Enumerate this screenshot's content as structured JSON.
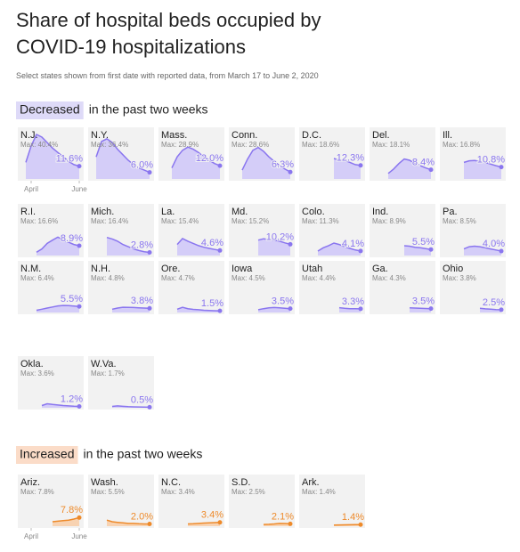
{
  "chart_data": {
    "type": "area",
    "title": "Share of hospital beds occupied by COVID-19 hospitalizations",
    "subtitle": "Select states shown from first date with reported data, from March 17 to June 2, 2020",
    "xlim": [
      0,
      11
    ],
    "xticks": [
      {
        "value": 2,
        "label": "April"
      },
      {
        "value": 11,
        "label": "June"
      }
    ],
    "ylim": [
      0,
      42
    ],
    "groups": [
      {
        "label": "Decreased",
        "caption": "in the past two weeks",
        "color": "#8a76ef",
        "fill": "#d4cdf8",
        "highlight": "#dedaf8",
        "panels": [
          {
            "name": "N.J.",
            "max_label": "Max: 40.4%",
            "values": [
              null,
              15,
              30,
              40.4,
              38,
              33,
              28,
              24,
              20,
              16,
              13,
              11.6
            ],
            "value_labels": [
              null,
              null,
              null,
              null,
              null,
              null,
              null,
              null,
              null,
              null,
              null,
              "11.6%"
            ]
          },
          {
            "name": "N.Y.",
            "max_label": "Max: 36.4%",
            "values": [
              null,
              20,
              34,
              36.4,
              33,
              27,
              22,
              17,
              13,
              10,
              8,
              6.0
            ],
            "value_labels": [
              null,
              null,
              null,
              null,
              null,
              null,
              null,
              null,
              null,
              null,
              null,
              "6.0%"
            ]
          },
          {
            "name": "Mass.",
            "max_label": "Max: 28.9%",
            "values": [
              null,
              null,
              10,
              20,
              26,
              28.9,
              27,
              24,
              20,
              17,
              14,
              12.0
            ],
            "value_labels": [
              null,
              null,
              null,
              null,
              null,
              null,
              null,
              null,
              null,
              null,
              null,
              "12.0%"
            ]
          },
          {
            "name": "Conn.",
            "max_label": "Max: 28.6%",
            "values": [
              null,
              null,
              8,
              18,
              26,
              28.6,
              25,
              20,
              16,
              12,
              9,
              6.3
            ],
            "value_labels": [
              null,
              null,
              null,
              null,
              null,
              null,
              null,
              null,
              null,
              null,
              null,
              "6.3%"
            ]
          },
          {
            "name": "D.C.",
            "max_label": "Max: 18.6%",
            "values": [
              null,
              null,
              null,
              null,
              null,
              null,
              18.6,
              17,
              17,
              15,
              13,
              12.3
            ],
            "value_labels": [
              null,
              null,
              null,
              null,
              null,
              null,
              null,
              null,
              null,
              null,
              null,
              "12.3%"
            ]
          },
          {
            "name": "Del.",
            "max_label": "Max: 18.1%",
            "values": [
              null,
              null,
              null,
              5,
              9,
              14,
              18.1,
              17,
              14,
              12,
              10,
              8.4
            ],
            "value_labels": [
              null,
              null,
              null,
              null,
              null,
              null,
              null,
              null,
              null,
              null,
              null,
              "8.4%"
            ]
          },
          {
            "name": "Ill.",
            "max_label": "Max: 16.8%",
            "values": [
              null,
              null,
              null,
              null,
              15,
              16.5,
              16.8,
              16,
              15,
              13.5,
              12,
              10.8
            ],
            "value_labels": [
              null,
              null,
              null,
              null,
              null,
              null,
              null,
              null,
              null,
              null,
              null,
              "10.8%"
            ]
          },
          {
            "name": "R.I.",
            "max_label": "Max: 16.6%",
            "values": [
              null,
              null,
              null,
              3,
              6,
              11,
              14,
              16.6,
              14,
              12,
              10,
              8.9
            ],
            "value_labels": [
              null,
              null,
              null,
              null,
              null,
              null,
              null,
              null,
              null,
              null,
              null,
              "8.9%"
            ]
          },
          {
            "name": "Mich.",
            "max_label": "Max: 16.4%",
            "values": [
              null,
              null,
              null,
              16.4,
              15,
              13,
              10,
              8,
              6,
              4.5,
              3.5,
              2.8
            ],
            "value_labels": [
              null,
              null,
              null,
              null,
              null,
              null,
              null,
              null,
              null,
              null,
              null,
              "2.8%"
            ]
          },
          {
            "name": "La.",
            "max_label": "Max: 15.4%",
            "values": [
              null,
              null,
              null,
              10,
              15.4,
              13,
              11,
              9,
              7.5,
              6.5,
              5.5,
              4.6
            ],
            "value_labels": [
              null,
              null,
              null,
              null,
              null,
              null,
              null,
              null,
              null,
              null,
              null,
              "4.6%"
            ]
          },
          {
            "name": "Md.",
            "max_label": "Max: 15.2%",
            "values": [
              null,
              null,
              null,
              null,
              null,
              14,
              15.2,
              14.5,
              14,
              13,
              11.5,
              10.2
            ],
            "value_labels": [
              null,
              null,
              null,
              null,
              null,
              null,
              null,
              null,
              null,
              null,
              null,
              "10.2%"
            ]
          },
          {
            "name": "Colo.",
            "max_label": "Max: 11.3%",
            "values": [
              null,
              null,
              null,
              4,
              7,
              9,
              11.3,
              10,
              8,
              6.5,
              5,
              4.1
            ],
            "value_labels": [
              null,
              null,
              null,
              null,
              null,
              null,
              null,
              null,
              null,
              null,
              null,
              "4.1%"
            ]
          },
          {
            "name": "Ind.",
            "max_label": "Max: 8.9%",
            "values": [
              null,
              null,
              null,
              null,
              null,
              null,
              8.9,
              8.5,
              7.5,
              7,
              6.2,
              5.5
            ],
            "value_labels": [
              null,
              null,
              null,
              null,
              null,
              null,
              null,
              null,
              null,
              null,
              null,
              "5.5%"
            ]
          },
          {
            "name": "Pa.",
            "max_label": "Max: 8.5%",
            "values": [
              null,
              null,
              null,
              null,
              6,
              8,
              8.5,
              8,
              7,
              6,
              5,
              4.0
            ],
            "value_labels": [
              null,
              null,
              null,
              null,
              null,
              null,
              null,
              null,
              null,
              null,
              null,
              "4.0%"
            ]
          },
          {
            "name": "N.M.",
            "max_label": "Max: 6.4%",
            "values": [
              null,
              null,
              null,
              2,
              3,
              4,
              5,
              6,
              6.4,
              6.2,
              5.8,
              5.5
            ],
            "value_labels": [
              null,
              null,
              null,
              null,
              null,
              null,
              null,
              null,
              null,
              null,
              null,
              "5.5%"
            ]
          },
          {
            "name": "N.H.",
            "max_label": "Max: 4.8%",
            "values": [
              null,
              null,
              null,
              null,
              3,
              4,
              4.8,
              4.6,
              4.5,
              4.3,
              4,
              3.8
            ],
            "value_labels": [
              null,
              null,
              null,
              null,
              null,
              null,
              null,
              null,
              null,
              null,
              null,
              "3.8%"
            ]
          },
          {
            "name": "Ore.",
            "max_label": "Max: 4.7%",
            "values": [
              null,
              null,
              null,
              3,
              4.7,
              3.5,
              2.8,
              2.5,
              2,
              1.8,
              1.6,
              1.5
            ],
            "value_labels": [
              null,
              null,
              null,
              null,
              null,
              null,
              null,
              null,
              null,
              null,
              null,
              "1.5%"
            ]
          },
          {
            "name": "Iowa",
            "max_label": "Max: 4.5%",
            "values": [
              null,
              null,
              null,
              null,
              null,
              2.5,
              3.5,
              4.2,
              4.5,
              4.2,
              3.8,
              3.5
            ],
            "value_labels": [
              null,
              null,
              null,
              null,
              null,
              null,
              null,
              null,
              null,
              null,
              null,
              "3.5%"
            ]
          },
          {
            "name": "Utah",
            "max_label": "Max: 4.4%",
            "values": [
              null,
              null,
              null,
              null,
              null,
              null,
              null,
              4.4,
              3.8,
              3.5,
              3.4,
              3.3
            ],
            "value_labels": [
              null,
              null,
              null,
              null,
              null,
              null,
              null,
              null,
              null,
              null,
              null,
              "3.3%"
            ]
          },
          {
            "name": "Ga.",
            "max_label": "Max: 4.3%",
            "values": [
              null,
              null,
              null,
              null,
              null,
              null,
              null,
              4.3,
              4,
              3.8,
              3.6,
              3.5
            ],
            "value_labels": [
              null,
              null,
              null,
              null,
              null,
              null,
              null,
              null,
              null,
              null,
              null,
              "3.5%"
            ]
          },
          {
            "name": "Ohio",
            "max_label": "Max: 3.8%",
            "values": [
              null,
              null,
              null,
              null,
              null,
              null,
              null,
              3.8,
              3.3,
              3,
              2.7,
              2.5
            ],
            "value_labels": [
              null,
              null,
              null,
              null,
              null,
              null,
              null,
              null,
              null,
              null,
              null,
              "2.5%"
            ]
          },
          {
            "name": "Okla.",
            "max_label": "Max: 3.6%",
            "values": [
              null,
              null,
              null,
              null,
              2,
              3.6,
              3,
              2.5,
              2,
              1.7,
              1.4,
              1.2
            ],
            "value_labels": [
              null,
              null,
              null,
              null,
              null,
              null,
              null,
              null,
              null,
              null,
              null,
              "1.2%"
            ]
          },
          {
            "name": "W.Va.",
            "max_label": "Max: 1.7%",
            "values": [
              null,
              null,
              null,
              null,
              1.2,
              1.7,
              1.3,
              1,
              0.8,
              0.7,
              0.6,
              0.5
            ],
            "value_labels": [
              null,
              null,
              null,
              null,
              null,
              null,
              null,
              null,
              null,
              null,
              null,
              "0.5%"
            ]
          }
        ]
      },
      {
        "label": "Increased",
        "caption": "in the past two weeks",
        "color": "#ee8a2a",
        "fill": "#f8d3b2",
        "highlight": "#fbdcc8",
        "panels": [
          {
            "name": "Ariz.",
            "max_label": "Max: 7.8%",
            "values": [
              null,
              null,
              null,
              null,
              null,
              null,
              4,
              4.5,
              5,
              5.5,
              6.5,
              7.8
            ],
            "value_labels": [
              null,
              null,
              null,
              null,
              null,
              null,
              null,
              null,
              null,
              null,
              null,
              "7.8%"
            ]
          },
          {
            "name": "Wash.",
            "max_label": "Max: 5.5%",
            "values": [
              null,
              null,
              null,
              5.5,
              4,
              3.5,
              3,
              2.5,
              2.5,
              2.2,
              2,
              2.0
            ],
            "value_labels": [
              null,
              null,
              null,
              null,
              null,
              null,
              null,
              null,
              null,
              null,
              null,
              "2.0%"
            ]
          },
          {
            "name": "N.C.",
            "max_label": "Max: 3.4%",
            "values": [
              null,
              null,
              null,
              null,
              null,
              2,
              2.2,
              2.5,
              2.8,
              3,
              3.2,
              3.4
            ],
            "value_labels": [
              null,
              null,
              null,
              null,
              null,
              null,
              null,
              null,
              null,
              null,
              null,
              "3.4%"
            ]
          },
          {
            "name": "S.D.",
            "max_label": "Max: 2.5%",
            "values": [
              null,
              null,
              null,
              null,
              null,
              null,
              1.5,
              1.7,
              2,
              2.5,
              2.4,
              2.1
            ],
            "value_labels": [
              null,
              null,
              null,
              null,
              null,
              null,
              null,
              null,
              null,
              null,
              null,
              "2.1%"
            ]
          },
          {
            "name": "Ark.",
            "max_label": "Max: 1.4%",
            "values": [
              null,
              null,
              null,
              null,
              null,
              null,
              1,
              1.1,
              1.2,
              1.3,
              1.4,
              1.4
            ],
            "value_labels": [
              null,
              null,
              null,
              null,
              null,
              null,
              null,
              null,
              null,
              null,
              null,
              "1.4%"
            ]
          }
        ]
      }
    ]
  }
}
